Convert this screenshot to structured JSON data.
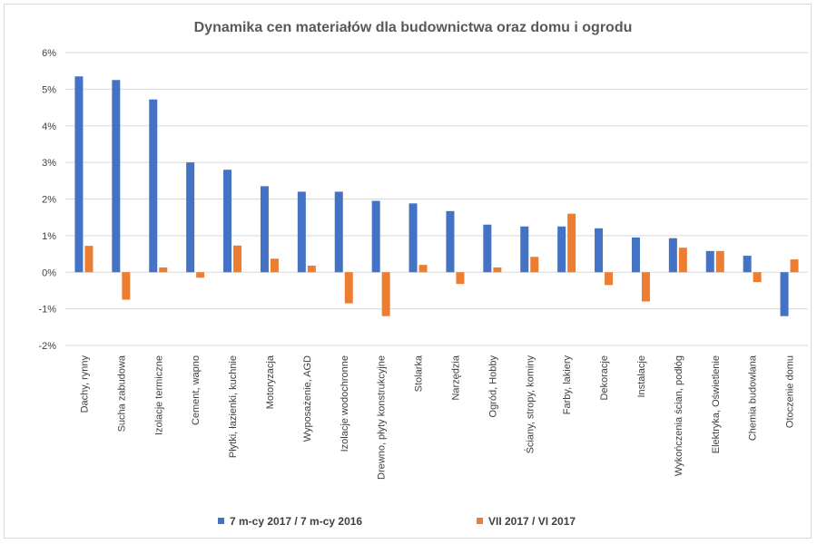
{
  "chart_data": {
    "type": "bar",
    "title": "Dynamika cen materiałów dla budownictwa oraz domu i ogrodu",
    "ylim": [
      -2,
      6
    ],
    "ytick_values": [
      -2,
      -1,
      0,
      1,
      2,
      3,
      4,
      5,
      6
    ],
    "yticks": [
      "-2%",
      "-1%",
      "0%",
      "1%",
      "2%",
      "3%",
      "4%",
      "5%",
      "6%"
    ],
    "grid": true,
    "legend_position": "bottom",
    "categories": [
      "Dachy, rynny",
      "Sucha zabudowa",
      "Izolacje termiczne",
      "Cement, wapno",
      "Płytki, łazienki, kuchnie",
      "Motoryzacja",
      "Wyposażenie, AGD",
      "Izolacje wodochronne",
      "Drewno, płyty konstrukcyjne",
      "Stolarka",
      "Narzędzia",
      "Ogród, Hobby",
      "Ściany, stropy, kominy",
      "Farby, lakiery",
      "Dekoracje",
      "Instalacje",
      "Wykończenia ścian, podłóg",
      "Elektryka, Oświetlenie",
      "Chemia budowlana",
      "Otoczenie domu"
    ],
    "series": [
      {
        "name": "7 m-cy 2017 / 7 m-cy 2016",
        "color": "#4472c4",
        "values": [
          5.35,
          5.25,
          4.72,
          3.0,
          2.8,
          2.35,
          2.2,
          2.2,
          1.95,
          1.88,
          1.67,
          1.3,
          1.25,
          1.25,
          1.2,
          0.95,
          0.93,
          0.58,
          0.45,
          -1.2
        ]
      },
      {
        "name": "VII 2017 / VI 2017",
        "color": "#ed7d31",
        "values": [
          0.72,
          -0.75,
          0.13,
          -0.15,
          0.73,
          0.37,
          0.18,
          -0.85,
          -1.2,
          0.2,
          -0.32,
          0.13,
          0.42,
          1.6,
          -0.35,
          -0.8,
          0.67,
          0.58,
          -0.27,
          0.35
        ]
      }
    ]
  }
}
